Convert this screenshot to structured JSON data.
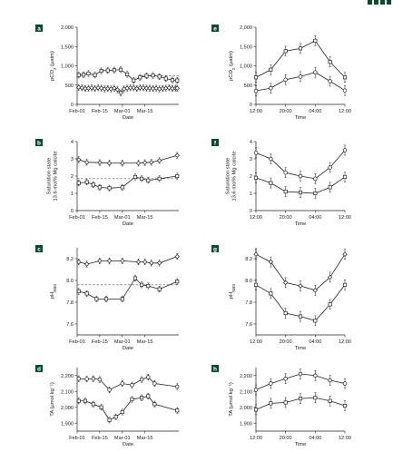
{
  "colors": {
    "panel_label_bg": "#0a4a2e",
    "line": "#222222",
    "dashed": "#555555",
    "corner_accent": "#0a4a2e"
  },
  "chart_data": [
    {
      "id": "a",
      "label": "a",
      "type": "line",
      "xtype": "date",
      "xlabel": "Date",
      "ylabel": "pCO2 (µatm)",
      "xlim": [
        0,
        63
      ],
      "ylim": [
        0,
        2000
      ],
      "xticks": [
        {
          "v": 0,
          "t": "Feb-01"
        },
        {
          "v": 14,
          "t": "Feb-15"
        },
        {
          "v": 28,
          "t": "Mar-01"
        },
        {
          "v": 42,
          "t": "Mar-15"
        }
      ],
      "yticks": [
        {
          "v": 0,
          "t": "0"
        },
        {
          "v": 500,
          "t": "500"
        },
        {
          "v": 1000,
          "t": "1,000"
        },
        {
          "v": 1500,
          "t": "1,500"
        },
        {
          "v": 2000,
          "t": "2,000"
        }
      ],
      "series": [
        {
          "marker": "square",
          "points": [
            [
              1,
              760
            ],
            [
              4,
              770
            ],
            [
              7,
              800
            ],
            [
              11,
              760
            ],
            [
              15,
              870
            ],
            [
              19,
              880
            ],
            [
              23,
              890
            ],
            [
              27,
              900
            ],
            [
              31,
              780
            ],
            [
              35,
              620
            ],
            [
              39,
              700
            ],
            [
              43,
              740
            ],
            [
              47,
              750
            ],
            [
              51,
              720
            ],
            [
              55,
              670
            ],
            [
              59,
              630
            ],
            [
              62,
              620
            ]
          ]
        },
        {
          "marker": "diamond",
          "points": [
            [
              1,
              440
            ],
            [
              3,
              430
            ],
            [
              5,
              410
            ],
            [
              7,
              420
            ],
            [
              9,
              430
            ],
            [
              11,
              410
            ],
            [
              13,
              430
            ],
            [
              15,
              420
            ],
            [
              17,
              400
            ],
            [
              19,
              410
            ],
            [
              21,
              400
            ],
            [
              23,
              420
            ],
            [
              25,
              380
            ],
            [
              27,
              300
            ],
            [
              29,
              400
            ],
            [
              31,
              420
            ],
            [
              33,
              430
            ],
            [
              35,
              430
            ],
            [
              37,
              410
            ],
            [
              39,
              430
            ],
            [
              41,
              430
            ],
            [
              43,
              420
            ],
            [
              45,
              420
            ],
            [
              47,
              410
            ],
            [
              49,
              420
            ],
            [
              51,
              400
            ],
            [
              53,
              410
            ],
            [
              55,
              420
            ],
            [
              57,
              430
            ],
            [
              59,
              410
            ],
            [
              61,
              420
            ],
            [
              62,
              420
            ]
          ]
        }
      ],
      "hlines": [
        {
          "y": 740,
          "x0": 40,
          "x1": 63
        }
      ]
    },
    {
      "id": "b",
      "label": "b",
      "type": "line",
      "xtype": "date",
      "xlabel": "Date",
      "ylabel": "Saturation state 13.6 mol% Mg calcite",
      "xlim": [
        0,
        63
      ],
      "ylim": [
        0,
        4
      ],
      "xticks": [
        {
          "v": 0,
          "t": "Feb-01"
        },
        {
          "v": 14,
          "t": "Feb-15"
        },
        {
          "v": 28,
          "t": "Mar-01"
        },
        {
          "v": 42,
          "t": "Mar-15"
        }
      ],
      "yticks": [
        {
          "v": 0,
          "t": "0"
        },
        {
          "v": 1,
          "t": "1"
        },
        {
          "v": 2,
          "t": "2"
        },
        {
          "v": 3,
          "t": "3"
        },
        {
          "v": 4,
          "t": "4"
        }
      ],
      "series": [
        {
          "marker": "diamond",
          "points": [
            [
              1,
              2.95
            ],
            [
              6,
              2.8
            ],
            [
              14,
              2.78
            ],
            [
              20,
              2.75
            ],
            [
              28,
              2.75
            ],
            [
              38,
              2.75
            ],
            [
              42,
              2.78
            ],
            [
              46,
              2.8
            ],
            [
              51,
              2.9
            ],
            [
              62,
              3.2
            ]
          ]
        },
        {
          "marker": "square",
          "points": [
            [
              1,
              1.6
            ],
            [
              6,
              1.65
            ],
            [
              10,
              1.5
            ],
            [
              14,
              1.35
            ],
            [
              20,
              1.3
            ],
            [
              28,
              1.35
            ],
            [
              36,
              1.95
            ],
            [
              40,
              1.85
            ],
            [
              44,
              1.75
            ],
            [
              51,
              1.85
            ],
            [
              62,
              2.0
            ]
          ]
        }
      ],
      "hlines": [
        {
          "y": 1.85,
          "x0": 0,
          "x1": 63
        }
      ]
    },
    {
      "id": "c",
      "label": "c",
      "type": "line",
      "xtype": "date",
      "xlabel": "Date",
      "ylabel": "pHNBS",
      "xlim": [
        0,
        63
      ],
      "ylim": [
        7.5,
        8.3
      ],
      "xticks": [
        {
          "v": 0,
          "t": "Feb-01"
        },
        {
          "v": 14,
          "t": "Feb-15"
        },
        {
          "v": 28,
          "t": "Mar-01"
        },
        {
          "v": 42,
          "t": "Mar-15"
        }
      ],
      "yticks": [
        {
          "v": 7.6,
          "t": "7.6"
        },
        {
          "v": 7.8,
          "t": "7.8"
        },
        {
          "v": 8.0,
          "t": "8.0"
        },
        {
          "v": 8.2,
          "t": "8.2"
        }
      ],
      "series": [
        {
          "marker": "diamond",
          "points": [
            [
              1,
              8.17
            ],
            [
              6,
              8.15
            ],
            [
              14,
              8.18
            ],
            [
              20,
              8.18
            ],
            [
              28,
              8.18
            ],
            [
              38,
              8.17
            ],
            [
              42,
              8.17
            ],
            [
              46,
              8.16
            ],
            [
              51,
              8.16
            ],
            [
              62,
              8.22
            ]
          ]
        },
        {
          "marker": "square",
          "points": [
            [
              1,
              7.9
            ],
            [
              6,
              7.88
            ],
            [
              12,
              7.83
            ],
            [
              18,
              7.83
            ],
            [
              28,
              7.83
            ],
            [
              36,
              8.02
            ],
            [
              40,
              7.96
            ],
            [
              44,
              7.95
            ],
            [
              51,
              7.92
            ],
            [
              62,
              7.99
            ]
          ]
        }
      ],
      "hlines": [
        {
          "y": 7.96,
          "x0": 0,
          "x1": 63
        }
      ]
    },
    {
      "id": "d",
      "label": "d",
      "type": "line",
      "xtype": "date",
      "xlabel": "Date",
      "ylabel": "TA (µmol kg⁻¹)",
      "xlim": [
        0,
        63
      ],
      "ylim": [
        1850,
        2250
      ],
      "xticks": [
        {
          "v": 0,
          "t": "Feb-01"
        },
        {
          "v": 14,
          "t": "Feb-15"
        },
        {
          "v": 28,
          "t": "Mar-01"
        },
        {
          "v": 42,
          "t": "Mar-15"
        }
      ],
      "yticks": [
        {
          "v": 1900,
          "t": "1,900"
        },
        {
          "v": 2000,
          "t": "2,000"
        },
        {
          "v": 2100,
          "t": "2,100"
        },
        {
          "v": 2200,
          "t": "2,200"
        }
      ],
      "series": [
        {
          "marker": "circle",
          "points": [
            [
              1,
              2180
            ],
            [
              6,
              2178
            ],
            [
              10,
              2180
            ],
            [
              14,
              2175
            ],
            [
              20,
              2110
            ],
            [
              28,
              2150
            ],
            [
              34,
              2140
            ],
            [
              40,
              2175
            ],
            [
              44,
              2190
            ],
            [
              48,
              2150
            ],
            [
              62,
              2130
            ]
          ]
        },
        {
          "marker": "square",
          "points": [
            [
              1,
              2040
            ],
            [
              5,
              2040
            ],
            [
              10,
              2020
            ],
            [
              15,
              2000
            ],
            [
              20,
              1920
            ],
            [
              24,
              1940
            ],
            [
              28,
              1970
            ],
            [
              34,
              2050
            ],
            [
              40,
              2060
            ],
            [
              44,
              2070
            ],
            [
              48,
              2020
            ],
            [
              62,
              1980
            ]
          ]
        }
      ]
    },
    {
      "id": "e",
      "label": "e",
      "type": "line",
      "xtype": "time",
      "xlabel": "Time",
      "ylabel": "pCO2 (µatm)",
      "xlim": [
        0,
        24
      ],
      "ylim": [
        0,
        2000
      ],
      "xticks": [
        {
          "v": 0,
          "t": "12:00"
        },
        {
          "v": 8,
          "t": "20:00"
        },
        {
          "v": 16,
          "t": "04:00"
        },
        {
          "v": 24,
          "t": "12:00"
        }
      ],
      "yticks": [
        {
          "v": 0,
          "t": "0"
        },
        {
          "v": 500,
          "t": "500"
        },
        {
          "v": 1000,
          "t": "1,000"
        },
        {
          "v": 1500,
          "t": "1,500"
        },
        {
          "v": 2000,
          "t": "2,000"
        }
      ],
      "series": [
        {
          "marker": "square",
          "points": [
            [
              0,
              700
            ],
            [
              4,
              900
            ],
            [
              8,
              1380
            ],
            [
              12,
              1450
            ],
            [
              16,
              1650
            ],
            [
              20,
              1100
            ],
            [
              24,
              700
            ]
          ]
        },
        {
          "marker": "circle",
          "points": [
            [
              0,
              350
            ],
            [
              4,
              420
            ],
            [
              8,
              640
            ],
            [
              12,
              720
            ],
            [
              16,
              830
            ],
            [
              20,
              600
            ],
            [
              24,
              360
            ]
          ]
        }
      ]
    },
    {
      "id": "f",
      "label": "f",
      "type": "line",
      "xtype": "time",
      "xlabel": "Time",
      "ylabel": "Saturation state 13.6 mol% Mg calcite",
      "xlim": [
        0,
        24
      ],
      "ylim": [
        0,
        4
      ],
      "xticks": [
        {
          "v": 0,
          "t": "12:00"
        },
        {
          "v": 8,
          "t": "20:00"
        },
        {
          "v": 16,
          "t": "04:00"
        },
        {
          "v": 24,
          "t": "12:00"
        }
      ],
      "yticks": [
        {
          "v": 0,
          "t": "0"
        },
        {
          "v": 1,
          "t": "1"
        },
        {
          "v": 2,
          "t": "2"
        },
        {
          "v": 3,
          "t": "3"
        },
        {
          "v": 4,
          "t": "4"
        }
      ],
      "series": [
        {
          "marker": "circle",
          "points": [
            [
              0,
              3.35
            ],
            [
              4,
              3.0
            ],
            [
              8,
              2.2
            ],
            [
              12,
              2.0
            ],
            [
              16,
              1.85
            ],
            [
              20,
              2.5
            ],
            [
              24,
              3.5
            ]
          ]
        },
        {
          "marker": "square",
          "points": [
            [
              0,
              1.9
            ],
            [
              4,
              1.6
            ],
            [
              8,
              1.1
            ],
            [
              12,
              1.05
            ],
            [
              16,
              1.0
            ],
            [
              20,
              1.35
            ],
            [
              24,
              1.95
            ]
          ]
        }
      ]
    },
    {
      "id": "g",
      "label": "g",
      "type": "line",
      "xtype": "time",
      "xlabel": "Time",
      "ylabel": "pHNBS",
      "xlim": [
        0,
        24
      ],
      "ylim": [
        7.5,
        8.3
      ],
      "xticks": [
        {
          "v": 0,
          "t": "12:00"
        },
        {
          "v": 8,
          "t": "20:00"
        },
        {
          "v": 16,
          "t": "04:00"
        },
        {
          "v": 24,
          "t": "12:00"
        }
      ],
      "yticks": [
        {
          "v": 7.6,
          "t": "7.6"
        },
        {
          "v": 7.8,
          "t": "7.8"
        },
        {
          "v": 8.0,
          "t": "8.0"
        },
        {
          "v": 8.2,
          "t": "8.2"
        }
      ],
      "series": [
        {
          "marker": "diamond",
          "points": [
            [
              0,
              8.24
            ],
            [
              4,
              8.17
            ],
            [
              8,
              7.98
            ],
            [
              12,
              7.95
            ],
            [
              16,
              7.91
            ],
            [
              20,
              8.03
            ],
            [
              24,
              8.24
            ]
          ]
        },
        {
          "marker": "square",
          "points": [
            [
              0,
              7.96
            ],
            [
              4,
              7.88
            ],
            [
              8,
              7.7
            ],
            [
              12,
              7.67
            ],
            [
              16,
              7.63
            ],
            [
              20,
              7.78
            ],
            [
              24,
              7.96
            ]
          ]
        }
      ]
    },
    {
      "id": "h",
      "label": "h",
      "type": "line",
      "xtype": "time",
      "xlabel": "Time",
      "ylabel": "TA (µmol kg⁻¹)",
      "xlim": [
        0,
        24
      ],
      "ylim": [
        1850,
        2250
      ],
      "xticks": [
        {
          "v": 0,
          "t": "12:00"
        },
        {
          "v": 8,
          "t": "20:00"
        },
        {
          "v": 16,
          "t": "04:00"
        },
        {
          "v": 24,
          "t": "12:00"
        }
      ],
      "yticks": [
        {
          "v": 1900,
          "t": "1,900"
        },
        {
          "v": 2000,
          "t": "2,000"
        },
        {
          "v": 2100,
          "t": "2,100"
        },
        {
          "v": 2200,
          "t": "2,200"
        }
      ],
      "series": [
        {
          "marker": "circle",
          "points": [
            [
              0,
              2110
            ],
            [
              4,
              2150
            ],
            [
              8,
              2180
            ],
            [
              12,
              2210
            ],
            [
              16,
              2200
            ],
            [
              20,
              2170
            ],
            [
              24,
              2150
            ]
          ]
        },
        {
          "marker": "square",
          "points": [
            [
              0,
              1985
            ],
            [
              4,
              2025
            ],
            [
              8,
              2030
            ],
            [
              12,
              2055
            ],
            [
              16,
              2060
            ],
            [
              20,
              2040
            ],
            [
              24,
              2010
            ]
          ]
        }
      ]
    }
  ]
}
